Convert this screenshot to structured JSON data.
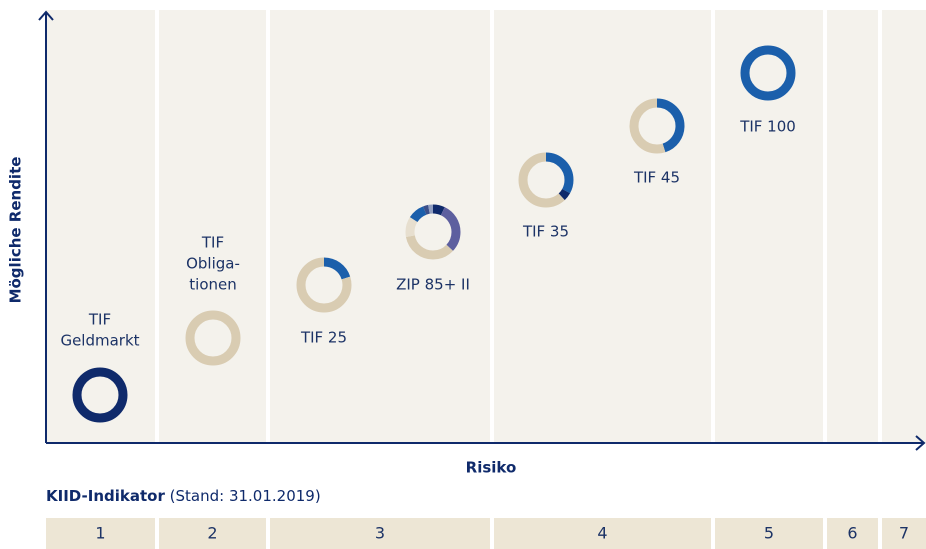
{
  "axes": {
    "y_label": "Mögliche Rendite",
    "x_label": "Risiko"
  },
  "funds": [
    {
      "label": [
        "TIF",
        "Geldmarkt"
      ],
      "segments": [
        {
          "color": "#0f2a6b",
          "share": 100
        }
      ]
    },
    {
      "label": [
        "TIF",
        "Obliga-",
        "tionen"
      ],
      "segments": [
        {
          "color": "#d9ccb2",
          "share": 100
        }
      ]
    },
    {
      "label": [
        "TIF 25"
      ],
      "segments": [
        {
          "color": "#1b5fab",
          "share": 20
        },
        {
          "color": "#d9ccb2",
          "share": 80
        }
      ]
    },
    {
      "label": [
        "ZIP 85+ II"
      ],
      "segments": [
        {
          "color": "#0f2a6b",
          "share": 7
        },
        {
          "color": "#5d5f9f",
          "share": 30
        },
        {
          "color": "#d9ccb2",
          "share": 35
        },
        {
          "color": "#e7dfcf",
          "share": 12
        },
        {
          "color": "#1b5fab",
          "share": 10
        },
        {
          "color": "#3b4f8a",
          "share": 3
        },
        {
          "color": "#8f9dc0",
          "share": 3
        }
      ]
    },
    {
      "label": [
        "TIF 35"
      ],
      "segments": [
        {
          "color": "#1b5fab",
          "share": 33
        },
        {
          "color": "#0f2a6b",
          "share": 5
        },
        {
          "color": "#d9ccb2",
          "share": 62
        }
      ]
    },
    {
      "label": [
        "TIF 45"
      ],
      "segments": [
        {
          "color": "#1b5fab",
          "share": 45
        },
        {
          "color": "#d9ccb2",
          "share": 55
        }
      ]
    },
    {
      "label": [
        "TIF 100"
      ],
      "segments": [
        {
          "color": "#1b5fab",
          "share": 100
        }
      ]
    }
  ],
  "kiid": {
    "title": "KIID-Indikator",
    "note": "(Stand: 31.01.2019)",
    "classes": [
      "1",
      "2",
      "3",
      "4",
      "5",
      "6",
      "7"
    ]
  }
}
